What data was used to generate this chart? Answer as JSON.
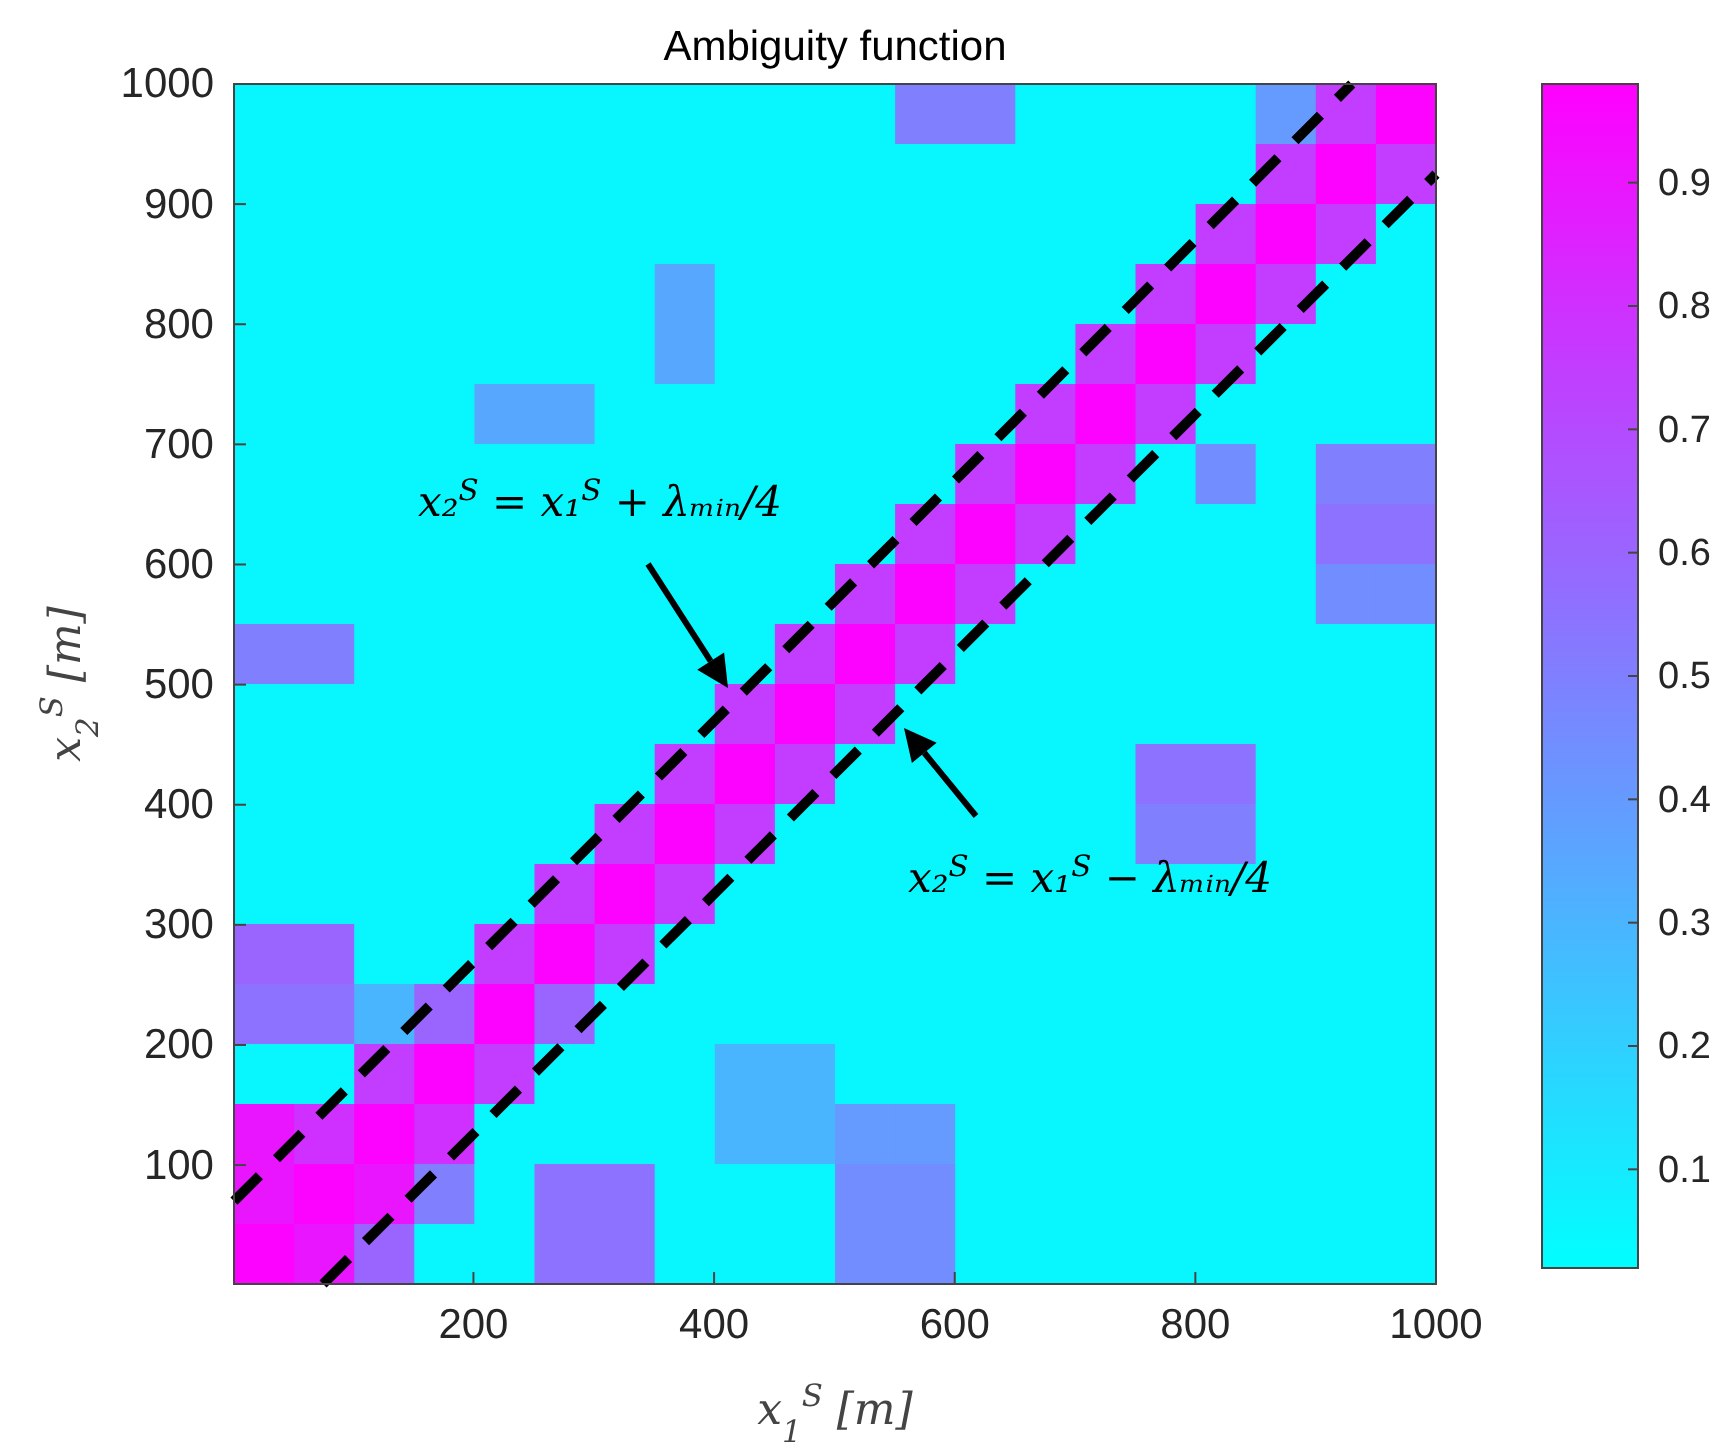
{
  "chart_data": {
    "type": "heatmap",
    "title": "Ambiguity function",
    "xlabel": "x$_{1}$$^{S}$ [m]",
    "ylabel": "x$_{2}$$^{S}$ [m]",
    "xlim": [
      1,
      1000
    ],
    "ylim": [
      1,
      1000
    ],
    "xticks": [
      200,
      400,
      600,
      800,
      1000
    ],
    "yticks": [
      100,
      200,
      300,
      400,
      500,
      600,
      700,
      800,
      900,
      1000
    ],
    "clim": [
      0.02,
      0.98
    ],
    "cticks": [
      0.1,
      0.2,
      0.3,
      0.4,
      0.5,
      0.6,
      0.7,
      0.8,
      0.9
    ],
    "cells": [
      [
        0.05,
        0.05,
        0.05,
        0.05,
        0.05,
        0.05,
        0.05,
        0.05,
        0.05,
        0.05,
        0.05,
        0.5,
        0.5,
        0.05,
        0.05,
        0.05,
        0.05,
        0.4,
        0.75,
        0.97
      ],
      [
        0.05,
        0.05,
        0.05,
        0.05,
        0.05,
        0.05,
        0.05,
        0.05,
        0.05,
        0.05,
        0.05,
        0.05,
        0.05,
        0.05,
        0.05,
        0.05,
        0.05,
        0.75,
        0.97,
        0.75
      ],
      [
        0.05,
        0.05,
        0.05,
        0.05,
        0.05,
        0.05,
        0.05,
        0.05,
        0.05,
        0.05,
        0.05,
        0.05,
        0.05,
        0.05,
        0.05,
        0.05,
        0.75,
        0.97,
        0.75,
        0.05
      ],
      [
        0.05,
        0.05,
        0.05,
        0.05,
        0.05,
        0.05,
        0.05,
        0.35,
        0.05,
        0.05,
        0.05,
        0.05,
        0.05,
        0.05,
        0.05,
        0.75,
        0.97,
        0.75,
        0.05,
        0.05
      ],
      [
        0.05,
        0.05,
        0.05,
        0.05,
        0.05,
        0.05,
        0.05,
        0.35,
        0.05,
        0.05,
        0.05,
        0.05,
        0.05,
        0.05,
        0.75,
        0.97,
        0.75,
        0.05,
        0.05,
        0.05
      ],
      [
        0.05,
        0.05,
        0.05,
        0.05,
        0.35,
        0.35,
        0.05,
        0.05,
        0.05,
        0.05,
        0.05,
        0.05,
        0.05,
        0.75,
        0.97,
        0.75,
        0.05,
        0.05,
        0.05,
        0.05
      ],
      [
        0.05,
        0.05,
        0.05,
        0.05,
        0.05,
        0.05,
        0.05,
        0.05,
        0.05,
        0.05,
        0.05,
        0.05,
        0.75,
        0.97,
        0.75,
        0.05,
        0.45,
        0.05,
        0.5,
        0.5
      ],
      [
        0.05,
        0.05,
        0.05,
        0.05,
        0.05,
        0.05,
        0.05,
        0.05,
        0.05,
        0.05,
        0.05,
        0.75,
        0.97,
        0.75,
        0.05,
        0.05,
        0.05,
        0.05,
        0.55,
        0.55
      ],
      [
        0.05,
        0.05,
        0.05,
        0.05,
        0.05,
        0.05,
        0.05,
        0.05,
        0.05,
        0.05,
        0.75,
        0.97,
        0.75,
        0.05,
        0.05,
        0.05,
        0.05,
        0.05,
        0.45,
        0.45
      ],
      [
        0.5,
        0.5,
        0.05,
        0.05,
        0.05,
        0.05,
        0.05,
        0.05,
        0.05,
        0.75,
        0.97,
        0.75,
        0.05,
        0.05,
        0.05,
        0.05,
        0.05,
        0.05,
        0.05,
        0.05
      ],
      [
        0.05,
        0.05,
        0.05,
        0.05,
        0.05,
        0.05,
        0.05,
        0.05,
        0.75,
        0.97,
        0.75,
        0.05,
        0.05,
        0.05,
        0.05,
        0.05,
        0.05,
        0.05,
        0.05,
        0.05
      ],
      [
        0.05,
        0.05,
        0.05,
        0.05,
        0.05,
        0.05,
        0.05,
        0.75,
        0.97,
        0.75,
        0.05,
        0.05,
        0.05,
        0.05,
        0.05,
        0.55,
        0.55,
        0.05,
        0.05,
        0.05
      ],
      [
        0.05,
        0.05,
        0.05,
        0.05,
        0.05,
        0.05,
        0.75,
        0.97,
        0.75,
        0.05,
        0.05,
        0.05,
        0.05,
        0.05,
        0.05,
        0.5,
        0.5,
        0.05,
        0.05,
        0.05
      ],
      [
        0.05,
        0.05,
        0.05,
        0.05,
        0.05,
        0.75,
        0.97,
        0.75,
        0.05,
        0.05,
        0.05,
        0.05,
        0.05,
        0.05,
        0.05,
        0.05,
        0.05,
        0.05,
        0.05,
        0.05
      ],
      [
        0.6,
        0.6,
        0.05,
        0.05,
        0.75,
        0.97,
        0.75,
        0.05,
        0.05,
        0.05,
        0.05,
        0.05,
        0.05,
        0.05,
        0.05,
        0.05,
        0.05,
        0.05,
        0.05,
        0.05
      ],
      [
        0.55,
        0.55,
        0.3,
        0.6,
        0.97,
        0.6,
        0.05,
        0.05,
        0.05,
        0.05,
        0.05,
        0.05,
        0.05,
        0.05,
        0.05,
        0.05,
        0.05,
        0.05,
        0.05,
        0.05
      ],
      [
        0.05,
        0.05,
        0.75,
        0.97,
        0.75,
        0.05,
        0.05,
        0.05,
        0.3,
        0.3,
        0.05,
        0.05,
        0.05,
        0.05,
        0.05,
        0.05,
        0.05,
        0.05,
        0.05,
        0.05
      ],
      [
        0.9,
        0.8,
        0.97,
        0.8,
        0.05,
        0.05,
        0.05,
        0.05,
        0.3,
        0.3,
        0.4,
        0.4,
        0.05,
        0.05,
        0.05,
        0.05,
        0.05,
        0.05,
        0.05,
        0.05
      ],
      [
        0.9,
        0.97,
        0.9,
        0.5,
        0.05,
        0.55,
        0.55,
        0.05,
        0.05,
        0.05,
        0.45,
        0.45,
        0.05,
        0.05,
        0.05,
        0.05,
        0.05,
        0.05,
        0.05,
        0.05
      ],
      [
        0.97,
        0.9,
        0.6,
        0.05,
        0.05,
        0.55,
        0.55,
        0.05,
        0.05,
        0.05,
        0.45,
        0.45,
        0.05,
        0.05,
        0.05,
        0.05,
        0.05,
        0.05,
        0.05,
        0.05
      ]
    ],
    "series": [
      {
        "type": "line",
        "color": "#000000",
        "line_style": "dashed",
        "x": [
          1,
          930
        ],
        "values": [
          70,
          1000
        ]
      },
      {
        "type": "line",
        "color": "#000000",
        "line_style": "dashed",
        "x": [
          75,
          1000
        ],
        "values": [
          1,
          925
        ]
      }
    ],
    "annotations": [
      "x₂$^{S}$ = x₁$^{S}$ + λₘᵢₙ/4",
      "x₂$^{S}$ = x₁$^{S}$ − λₘᵢₙ/4"
    ]
  }
}
